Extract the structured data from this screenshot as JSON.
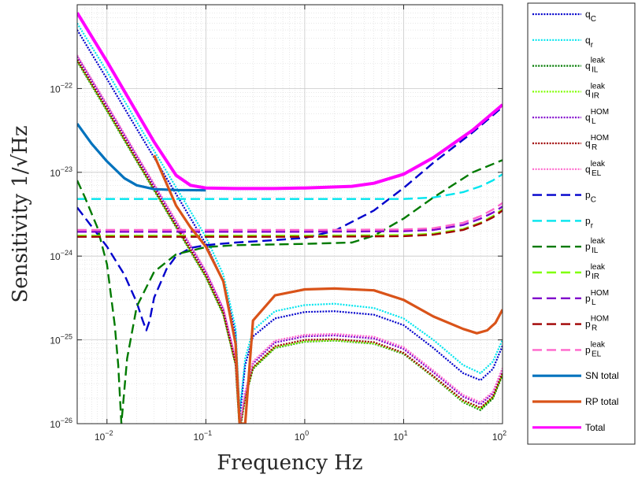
{
  "chart_data": {
    "type": "line",
    "xlabel": "Frequency Hz",
    "ylabel": "Sensitivity 1/√Hz",
    "xscale": "log",
    "yscale": "log",
    "xlim": [
      0.005,
      100
    ],
    "ylim": [
      1e-26,
      1e-21
    ],
    "grid": true,
    "legend_location": "outside-right",
    "x_ticks": [
      {
        "value": 0.01,
        "base": "10",
        "exp": "−2"
      },
      {
        "value": 0.1,
        "base": "10",
        "exp": "−1"
      },
      {
        "value": 1,
        "base": "10",
        "exp": "0"
      },
      {
        "value": 10,
        "base": "10",
        "exp": "1"
      },
      {
        "value": 100,
        "base": "10",
        "exp": "2"
      }
    ],
    "y_ticks": [
      {
        "value": 1e-26,
        "base": "10",
        "exp": "−26"
      },
      {
        "value": 1e-25,
        "base": "10",
        "exp": "−25"
      },
      {
        "value": 1e-24,
        "base": "10",
        "exp": "−24"
      },
      {
        "value": 1e-23,
        "base": "10",
        "exp": "−23"
      },
      {
        "value": 1e-22,
        "base": "10",
        "exp": "−22"
      }
    ],
    "series": [
      {
        "name": "qC",
        "label_main": "q",
        "sub": "C",
        "sup": "",
        "color": "#0000cc",
        "style": "dotted",
        "x": [
          0.005,
          0.01,
          0.02,
          0.05,
          0.1,
          0.15,
          0.2,
          0.22,
          0.25,
          0.3,
          0.5,
          1,
          2,
          5,
          10,
          20,
          40,
          60,
          80,
          100
        ],
        "y": [
          5e-22,
          1.3e-22,
          3.3e-23,
          5.5e-24,
          1.4e-24,
          5e-25,
          1.2e-25,
          1.2e-26,
          5e-26,
          1.1e-25,
          1.8e-25,
          2.15e-25,
          2.2e-25,
          2e-25,
          1.5e-25,
          8e-26,
          4e-26,
          3.3e-26,
          4.5e-26,
          8.5e-26
        ]
      },
      {
        "name": "qr",
        "label_main": "q",
        "sub": "r",
        "sup": "",
        "color": "#00e5ee",
        "style": "dotted",
        "x": [
          0.005,
          0.01,
          0.02,
          0.05,
          0.1,
          0.15,
          0.2,
          0.22,
          0.25,
          0.3,
          0.5,
          1,
          2,
          5,
          10,
          20,
          40,
          60,
          80,
          100
        ],
        "y": [
          6e-22,
          1.6e-22,
          4e-23,
          6.6e-24,
          1.7e-24,
          6e-25,
          1.4e-25,
          1.4e-26,
          6e-26,
          1.3e-25,
          2.2e-25,
          2.6e-25,
          2.7e-25,
          2.4e-25,
          1.8e-25,
          1e-25,
          5e-26,
          4e-26,
          5.5e-26,
          1e-25
        ]
      },
      {
        "name": "qIL leak",
        "label_main": "q",
        "sub": "IL",
        "sup": "leak",
        "color": "#007a00",
        "style": "dotted",
        "x": [
          0.005,
          0.01,
          0.02,
          0.05,
          0.1,
          0.15,
          0.2,
          0.22,
          0.25,
          0.3,
          0.5,
          1,
          2,
          5,
          10,
          20,
          40,
          60,
          80,
          100
        ],
        "y": [
          2.1e-22,
          5.4e-23,
          1.35e-23,
          2.2e-24,
          5.6e-25,
          2e-25,
          5e-26,
          8e-27,
          2e-26,
          4.5e-26,
          8e-26,
          9.5e-26,
          9.8e-26,
          9e-26,
          6.8e-26,
          3.6e-26,
          1.8e-26,
          1.45e-26,
          2e-26,
          3.8e-26
        ]
      },
      {
        "name": "qIR leak",
        "label_main": "q",
        "sub": "IR",
        "sup": "leak",
        "color": "#7fff00",
        "style": "dotted",
        "x": [
          0.005,
          0.01,
          0.02,
          0.05,
          0.1,
          0.15,
          0.2,
          0.22,
          0.25,
          0.3,
          0.5,
          1,
          2,
          5,
          10,
          20,
          40,
          60,
          80,
          100
        ],
        "y": [
          2.15e-22,
          5.5e-23,
          1.38e-23,
          2.25e-24,
          5.7e-25,
          2.05e-25,
          5.1e-26,
          8.2e-27,
          2.05e-26,
          4.6e-26,
          8.1e-26,
          9.6e-26,
          9.9e-26,
          9.1e-26,
          6.9e-26,
          3.65e-26,
          1.85e-26,
          1.5e-26,
          2.05e-26,
          3.9e-26
        ]
      },
      {
        "name": "qL HOM",
        "label_main": "q",
        "sub": "L",
        "sup": "HOM",
        "color": "#7f00cc",
        "style": "dotted",
        "x": [
          0.005,
          0.01,
          0.02,
          0.05,
          0.1,
          0.15,
          0.2,
          0.22,
          0.25,
          0.3,
          0.5,
          1,
          2,
          5,
          10,
          20,
          40,
          60,
          80,
          100
        ],
        "y": [
          2.4e-22,
          6.2e-23,
          1.55e-23,
          2.5e-24,
          6.4e-25,
          2.3e-25,
          5.6e-26,
          9e-27,
          2.3e-26,
          5.2e-26,
          9.3e-26,
          1.1e-25,
          1.13e-25,
          1.04e-25,
          7.8e-26,
          4.1e-26,
          2.1e-26,
          1.7e-26,
          2.3e-26,
          4.4e-26
        ]
      },
      {
        "name": "qR HOM",
        "label_main": "q",
        "sub": "R",
        "sup": "HOM",
        "color": "#a00000",
        "style": "dotted",
        "x": [
          0.005,
          0.01,
          0.02,
          0.05,
          0.1,
          0.15,
          0.2,
          0.22,
          0.25,
          0.3,
          0.5,
          1,
          2,
          5,
          10,
          20,
          40,
          60,
          80,
          100
        ],
        "y": [
          2.2e-22,
          5.7e-23,
          1.42e-23,
          2.3e-24,
          5.9e-25,
          2.1e-25,
          5.2e-26,
          8.5e-27,
          2.1e-26,
          4.7e-26,
          8.4e-26,
          1e-25,
          1.02e-25,
          9.4e-26,
          7e-26,
          3.7e-26,
          1.9e-26,
          1.55e-26,
          2.1e-26,
          4e-26
        ]
      },
      {
        "name": "qEL leak",
        "label_main": "q",
        "sub": "EL",
        "sup": "leak",
        "color": "#ff66cc",
        "style": "dotted",
        "x": [
          0.005,
          0.01,
          0.02,
          0.05,
          0.1,
          0.15,
          0.2,
          0.22,
          0.25,
          0.3,
          0.5,
          1,
          2,
          5,
          10,
          20,
          40,
          60,
          80,
          100
        ],
        "y": [
          2.5e-22,
          6.5e-23,
          1.62e-23,
          2.65e-24,
          6.7e-25,
          2.4e-25,
          5.9e-26,
          9.5e-27,
          2.4e-26,
          5.5e-26,
          9.8e-26,
          1.15e-25,
          1.18e-25,
          1.09e-25,
          8.2e-26,
          4.3e-26,
          2.2e-26,
          1.8e-26,
          2.4e-26,
          4.6e-26
        ]
      },
      {
        "name": "pC",
        "label_main": "p",
        "sub": "C",
        "sup": "",
        "color": "#0000cc",
        "style": "dashed",
        "x": [
          0.005,
          0.01,
          0.015,
          0.02,
          0.023,
          0.025,
          0.027,
          0.03,
          0.04,
          0.05,
          0.07,
          0.1,
          0.2,
          0.5,
          1,
          2,
          5,
          10,
          20,
          50,
          100
        ],
        "y": [
          3.8e-24,
          1.3e-24,
          6e-25,
          2.8e-25,
          1.7e-25,
          1.3e-25,
          1.7e-25,
          3.2e-25,
          7e-25,
          1e-24,
          1.25e-24,
          1.35e-24,
          1.45e-24,
          1.55e-24,
          1.65e-24,
          2e-24,
          3.5e-24,
          6.5e-24,
          1.3e-23,
          3e-23,
          6e-23
        ]
      },
      {
        "name": "pr",
        "label_main": "p",
        "sub": "r",
        "sup": "",
        "color": "#00e5ee",
        "style": "dashed",
        "x": [
          0.005,
          0.01,
          0.1,
          1,
          10,
          20,
          40,
          60,
          80,
          100
        ],
        "y": [
          4.8e-24,
          4.8e-24,
          4.8e-24,
          4.8e-24,
          4.8e-24,
          5e-24,
          5.8e-24,
          6.8e-24,
          8e-24,
          9.5e-24
        ]
      },
      {
        "name": "pIL leak",
        "label_main": "p",
        "sub": "IL",
        "sup": "leak",
        "color": "#007a00",
        "style": "dashed",
        "x": [
          0.005,
          0.006,
          0.008,
          0.01,
          0.012,
          0.013,
          0.014,
          0.016,
          0.02,
          0.03,
          0.05,
          0.1,
          0.2,
          1,
          3,
          5,
          10,
          20,
          50,
          100
        ],
        "y": [
          8e-24,
          5e-24,
          2.2e-24,
          8e-25,
          1.5e-25,
          5e-26,
          1e-26,
          6e-26,
          2.5e-25,
          6.5e-25,
          1.05e-24,
          1.28e-24,
          1.35e-24,
          1.4e-24,
          1.45e-24,
          1.75e-24,
          2.8e-24,
          5e-24,
          1e-23,
          1.4e-23
        ]
      },
      {
        "name": "pIR leak",
        "label_main": "p",
        "sub": "IR",
        "sup": "leak",
        "color": "#7fff00",
        "style": "dashed",
        "x": [
          0.005,
          0.01,
          0.1,
          1,
          10,
          20,
          40,
          60,
          80,
          100
        ],
        "y": [
          1.75e-24,
          1.75e-24,
          1.75e-24,
          1.75e-24,
          1.78e-24,
          1.85e-24,
          2.1e-24,
          2.5e-24,
          3e-24,
          3.6e-24
        ]
      },
      {
        "name": "pL HOM",
        "label_main": "p",
        "sub": "L",
        "sup": "HOM",
        "color": "#7f00cc",
        "style": "dashed",
        "x": [
          0.005,
          0.01,
          0.1,
          1,
          10,
          20,
          40,
          60,
          80,
          100
        ],
        "y": [
          1.95e-24,
          1.95e-24,
          1.95e-24,
          1.95e-24,
          1.98e-24,
          2.05e-24,
          2.35e-24,
          2.8e-24,
          3.3e-24,
          3.9e-24
        ]
      },
      {
        "name": "pR HOM",
        "label_main": "p",
        "sub": "R",
        "sup": "HOM",
        "color": "#a00000",
        "style": "dashed",
        "x": [
          0.005,
          0.01,
          0.1,
          1,
          10,
          20,
          40,
          60,
          80,
          100
        ],
        "y": [
          1.7e-24,
          1.7e-24,
          1.7e-24,
          1.7e-24,
          1.73e-24,
          1.8e-24,
          2.05e-24,
          2.45e-24,
          2.9e-24,
          3.5e-24
        ]
      },
      {
        "name": "pEL leak",
        "label_main": "p",
        "sub": "EL",
        "sup": "leak",
        "color": "#ff66cc",
        "style": "dashed",
        "x": [
          0.005,
          0.01,
          0.1,
          1,
          10,
          20,
          40,
          60,
          80,
          100
        ],
        "y": [
          2.05e-24,
          2.05e-24,
          2.05e-24,
          2.05e-24,
          2.08e-24,
          2.15e-24,
          2.5e-24,
          3e-24,
          3.6e-24,
          4.3e-24
        ]
      },
      {
        "name": "SN total",
        "label_main": "SN total",
        "sub": "",
        "sup": "",
        "color": "#0072bd",
        "style": "solid",
        "x": [
          0.005,
          0.007,
          0.01,
          0.015,
          0.02,
          0.03,
          0.05,
          0.1
        ],
        "y": [
          3.8e-23,
          2.2e-23,
          1.35e-23,
          8.5e-24,
          7e-24,
          6.3e-24,
          6.15e-24,
          6.1e-24
        ]
      },
      {
        "name": "RP total",
        "label_main": "RP total",
        "sub": "",
        "sup": "",
        "color": "#d95319",
        "style": "solid",
        "x": [
          0.03,
          0.05,
          0.07,
          0.1,
          0.15,
          0.2,
          0.22,
          0.25,
          0.3,
          0.5,
          1,
          2,
          5,
          10,
          20,
          40,
          55,
          70,
          85,
          100
        ],
        "y": [
          1.6e-23,
          4e-24,
          2.2e-24,
          1.3e-24,
          5e-25,
          9e-26,
          1e-26,
          1e-26,
          1.7e-25,
          3.4e-25,
          4e-25,
          4.1e-25,
          3.9e-25,
          3e-25,
          1.9e-25,
          1.35e-25,
          1.2e-25,
          1.3e-25,
          1.6e-25,
          2.3e-25
        ]
      },
      {
        "name": "Total",
        "label_main": "Total",
        "sub": "",
        "sup": "",
        "color": "#ff00ff",
        "style": "solid",
        "x": [
          0.005,
          0.01,
          0.02,
          0.03,
          0.05,
          0.07,
          0.1,
          0.2,
          0.5,
          1,
          3,
          5,
          10,
          20,
          50,
          100
        ],
        "y": [
          8e-22,
          2.1e-22,
          5.2e-23,
          2.3e-23,
          9.2e-24,
          7e-24,
          6.5e-24,
          6.4e-24,
          6.4e-24,
          6.5e-24,
          6.8e-24,
          7.4e-24,
          9.5e-24,
          1.5e-23,
          3.2e-23,
          6.4e-23
        ]
      }
    ]
  }
}
